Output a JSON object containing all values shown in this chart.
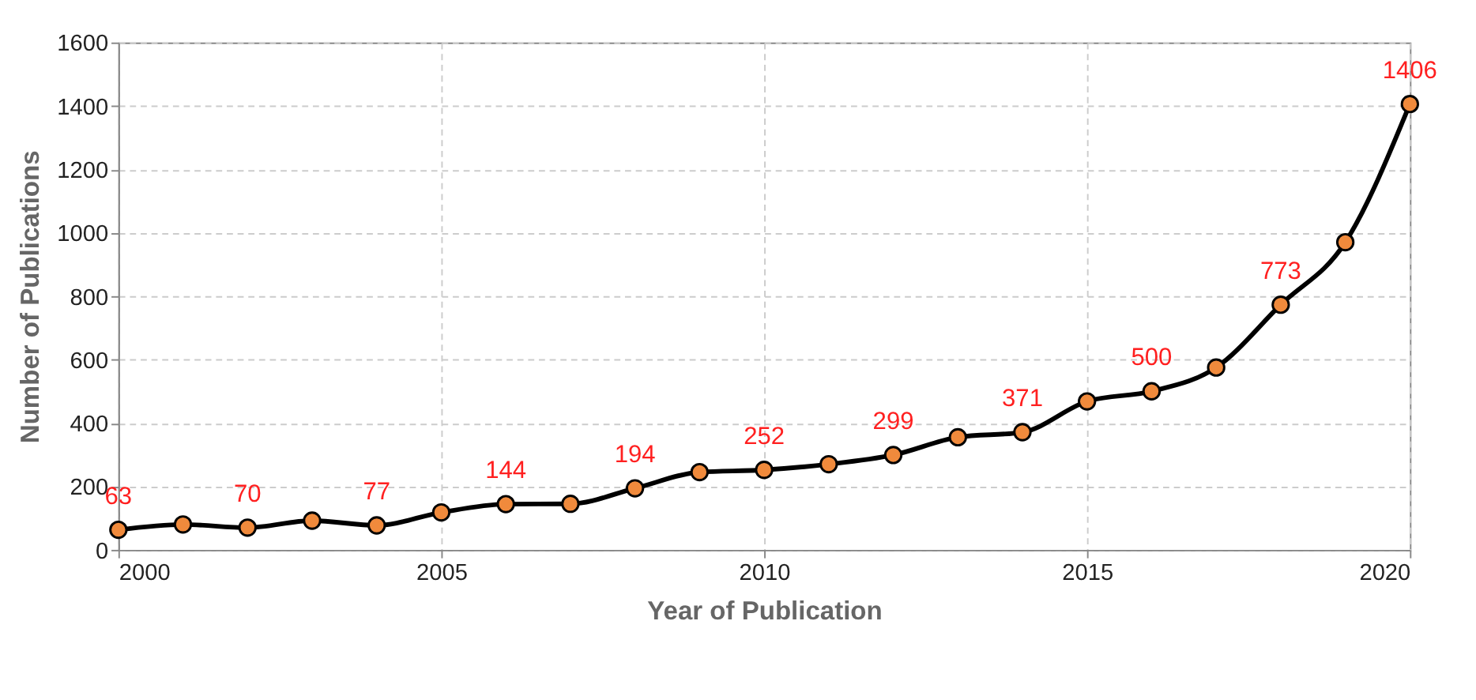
{
  "chart_data": {
    "type": "line",
    "xlabel": "Year of Publication",
    "ylabel": "Number of Publications",
    "x": [
      2000,
      2001,
      2002,
      2003,
      2004,
      2005,
      2006,
      2007,
      2008,
      2009,
      2010,
      2011,
      2012,
      2013,
      2014,
      2015,
      2016,
      2017,
      2018,
      2019,
      2020
    ],
    "series": [
      {
        "color": "#f08a3c",
        "values": [
          63,
          80,
          70,
          92,
          77,
          118,
          144,
          145,
          194,
          245,
          252,
          270,
          299,
          355,
          371,
          468,
          500,
          575,
          773,
          970,
          1406
        ],
        "value_labels": [
          "63",
          null,
          "70",
          null,
          "77",
          null,
          "144",
          null,
          "194",
          null,
          "252",
          null,
          "299",
          null,
          "371",
          null,
          "500",
          null,
          "773",
          null,
          "1406"
        ]
      }
    ],
    "xlim": [
      2000,
      2020
    ],
    "xticks": [
      2000,
      2005,
      2010,
      2015,
      2020
    ],
    "ylim": [
      0,
      1600
    ],
    "yticks": [
      0,
      200,
      400,
      600,
      800,
      1000,
      1200,
      1400,
      1600
    ],
    "grid": true,
    "marker": "circle",
    "line_style": "solid"
  }
}
